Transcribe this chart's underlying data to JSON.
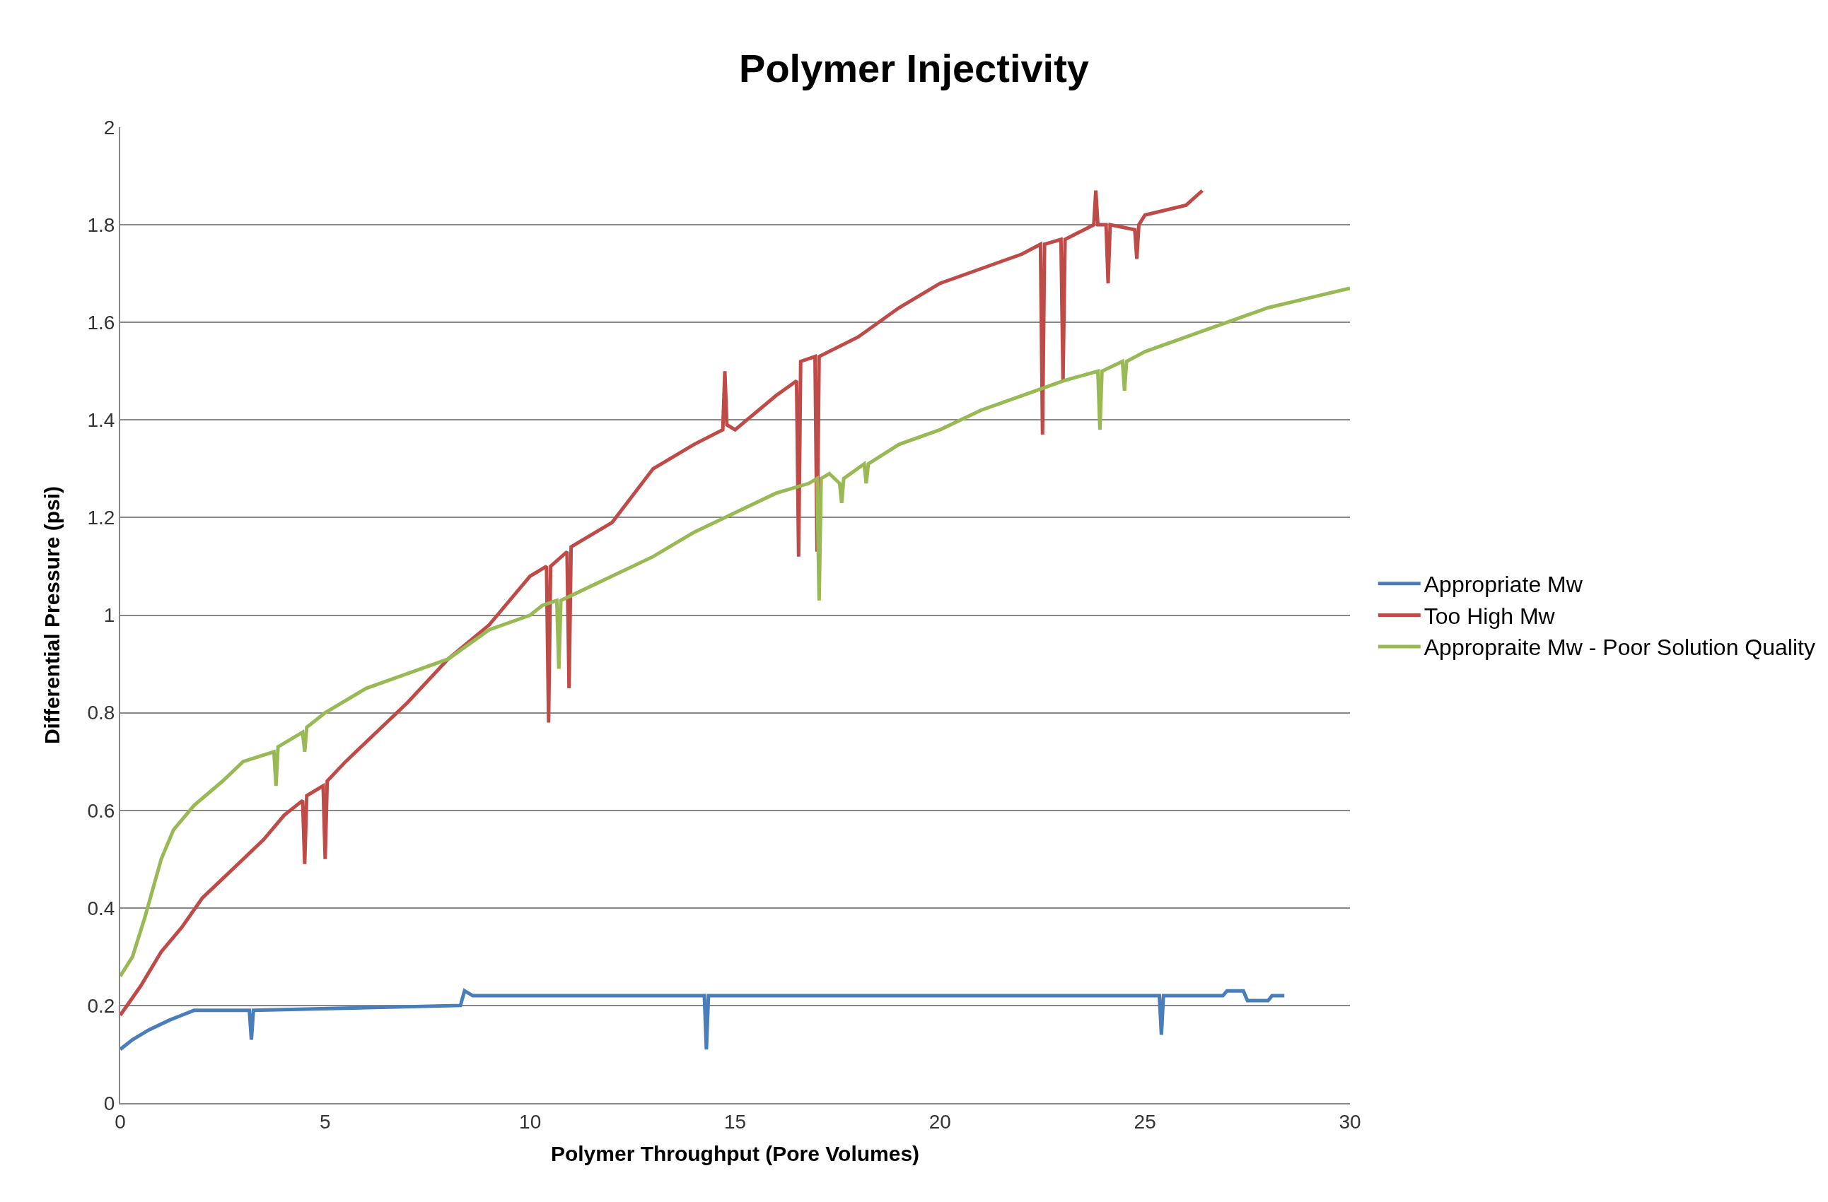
{
  "chart_data": {
    "type": "line",
    "title": "Polymer Injectivity",
    "xlabel": "Polymer Throughput (Pore Volumes)",
    "ylabel": "Differential Pressure (psi)",
    "xlim": [
      0,
      30
    ],
    "xticks": [
      0,
      5,
      10,
      15,
      20,
      25,
      30
    ],
    "ylim": [
      0,
      2
    ],
    "yticks": [
      0,
      0.2,
      0.4,
      0.6,
      0.8,
      1,
      1.2,
      1.4,
      1.6,
      1.8,
      2
    ],
    "grid": "y",
    "legend": "right",
    "marker": "none",
    "line_style": "solid",
    "series": [
      {
        "name": "Appropriate Mw",
        "color": "#4a7ebb",
        "x": [
          0,
          0.3,
          0.7,
          1.2,
          1.8,
          3.15,
          3.2,
          3.25,
          8.3,
          8.4,
          8.6,
          14.25,
          14.3,
          14.35,
          25.35,
          25.4,
          25.45,
          26.9,
          27.0,
          27.4,
          27.5,
          28.0,
          28.1,
          28.4
        ],
        "values": [
          0.11,
          0.13,
          0.15,
          0.17,
          0.19,
          0.19,
          0.13,
          0.19,
          0.2,
          0.23,
          0.22,
          0.22,
          0.11,
          0.22,
          0.22,
          0.14,
          0.22,
          0.22,
          0.23,
          0.23,
          0.21,
          0.21,
          0.22,
          0.22
        ]
      },
      {
        "name": "Too High Mw",
        "color": "#be4b48",
        "x": [
          0,
          0.5,
          1,
          1.5,
          2,
          2.5,
          3,
          3.5,
          4,
          4.45,
          4.5,
          4.55,
          4.95,
          5.0,
          5.05,
          5.5,
          6,
          7,
          8,
          9,
          10,
          10.4,
          10.45,
          10.5,
          10.9,
          10.95,
          11.0,
          12,
          13,
          14,
          14.7,
          14.75,
          14.8,
          15,
          16,
          16.5,
          16.55,
          16.6,
          16.95,
          17.0,
          17.05,
          18,
          19,
          20,
          21,
          22,
          22.45,
          22.5,
          22.55,
          22.95,
          23.0,
          23.05,
          23.75,
          23.8,
          23.85,
          24.05,
          24.1,
          24.15,
          24.75,
          24.8,
          24.85,
          25,
          26,
          26.4
        ],
        "values": [
          0.18,
          0.24,
          0.31,
          0.36,
          0.42,
          0.46,
          0.5,
          0.54,
          0.59,
          0.62,
          0.49,
          0.63,
          0.65,
          0.5,
          0.66,
          0.7,
          0.74,
          0.82,
          0.91,
          0.98,
          1.08,
          1.1,
          0.78,
          1.1,
          1.13,
          0.85,
          1.14,
          1.19,
          1.3,
          1.35,
          1.38,
          1.5,
          1.39,
          1.38,
          1.45,
          1.48,
          1.12,
          1.52,
          1.53,
          1.13,
          1.53,
          1.57,
          1.63,
          1.68,
          1.71,
          1.74,
          1.76,
          1.37,
          1.76,
          1.77,
          1.48,
          1.77,
          1.8,
          1.87,
          1.8,
          1.8,
          1.68,
          1.8,
          1.79,
          1.73,
          1.8,
          1.82,
          1.84,
          1.87
        ]
      },
      {
        "name": "Appropraite Mw - Poor Solution Quality",
        "color": "#98b954",
        "x": [
          0,
          0.3,
          0.6,
          1,
          1.3,
          1.8,
          2.5,
          3,
          3.75,
          3.8,
          3.85,
          4.45,
          4.5,
          4.55,
          5,
          6,
          7,
          8,
          9,
          10,
          10.3,
          10.65,
          10.7,
          10.75,
          11,
          12,
          13,
          14,
          15,
          16,
          16.8,
          17.0,
          17.05,
          17.1,
          17.3,
          17.55,
          17.6,
          17.65,
          18.15,
          18.2,
          18.25,
          19,
          20,
          21,
          22,
          23,
          23.85,
          23.9,
          23.95,
          24.45,
          24.5,
          24.55,
          25,
          26,
          27,
          28,
          29,
          30
        ],
        "values": [
          0.26,
          0.3,
          0.38,
          0.5,
          0.56,
          0.61,
          0.66,
          0.7,
          0.72,
          0.65,
          0.73,
          0.76,
          0.72,
          0.77,
          0.8,
          0.85,
          0.88,
          0.91,
          0.97,
          1.0,
          1.02,
          1.03,
          0.89,
          1.03,
          1.04,
          1.08,
          1.12,
          1.17,
          1.21,
          1.25,
          1.27,
          1.28,
          1.03,
          1.28,
          1.29,
          1.27,
          1.23,
          1.28,
          1.31,
          1.27,
          1.31,
          1.35,
          1.38,
          1.42,
          1.45,
          1.48,
          1.5,
          1.38,
          1.5,
          1.52,
          1.46,
          1.52,
          1.54,
          1.57,
          1.6,
          1.63,
          1.65,
          1.67
        ]
      }
    ]
  }
}
